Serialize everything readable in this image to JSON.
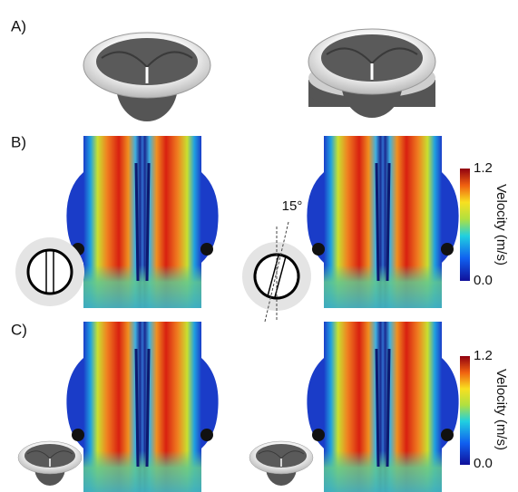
{
  "panels": [
    {
      "label": "A)"
    },
    {
      "label": "B)",
      "angle": "15°",
      "colorbar": {
        "max": "1.2",
        "min": "0.0",
        "title": "Velocity (m/s)"
      }
    },
    {
      "label": "C)",
      "colorbar": {
        "max": "1.2",
        "min": "0.0",
        "title": "Velocity (m/s)"
      }
    }
  ]
}
